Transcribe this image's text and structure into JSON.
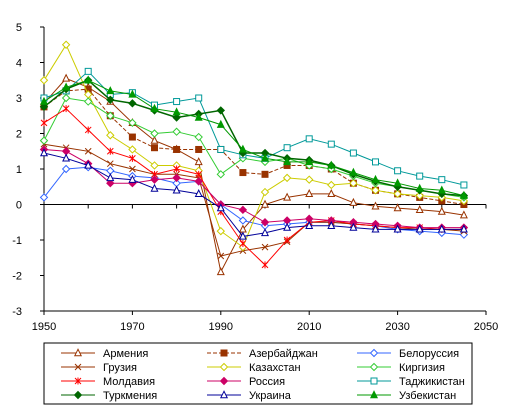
{
  "chart_data": {
    "type": "line",
    "title": "",
    "xlabel": "",
    "ylabel": "",
    "xlim": [
      1950,
      2050
    ],
    "ylim": [
      -3,
      5
    ],
    "x_ticks": [
      "1950",
      "1970",
      "1990",
      "2010",
      "2030",
      "2050"
    ],
    "y_ticks": [
      "-3",
      "-2",
      "-1",
      "0",
      "1",
      "2",
      "3",
      "4",
      "5"
    ],
    "grid": false,
    "legend_position": "bottom",
    "x": [
      1950,
      1955,
      1960,
      1965,
      1970,
      1975,
      1980,
      1985,
      1990,
      1995,
      2000,
      2005,
      2010,
      2015,
      2020,
      2025,
      2030,
      2035,
      2040,
      2045
    ],
    "series": [
      {
        "name": "Армения",
        "color": "#993300",
        "marker": "triangle-open",
        "dash": "solid",
        "values": [
          2.85,
          3.55,
          3.3,
          2.9,
          2.3,
          1.8,
          1.55,
          1.2,
          -1.9,
          -0.7,
          0.0,
          0.2,
          0.3,
          0.3,
          0.05,
          -0.05,
          -0.1,
          -0.15,
          -0.2,
          -0.3
        ]
      },
      {
        "name": "Азербайджан",
        "color": "#993300",
        "marker": "square-filled",
        "dash": "dashed",
        "values": [
          2.75,
          3.2,
          3.25,
          2.5,
          1.9,
          1.6,
          1.55,
          1.55,
          1.55,
          0.9,
          0.85,
          1.1,
          1.1,
          1.0,
          0.6,
          0.4,
          0.3,
          0.2,
          0.1,
          0.0
        ]
      },
      {
        "name": "Белоруссия",
        "color": "#3366ff",
        "marker": "diamond-open",
        "dash": "solid",
        "values": [
          0.2,
          1.0,
          1.05,
          0.95,
          0.8,
          0.75,
          0.6,
          0.65,
          0.0,
          -0.45,
          -0.6,
          -0.55,
          -0.5,
          -0.5,
          -0.55,
          -0.6,
          -0.7,
          -0.75,
          -0.8,
          -0.85
        ]
      },
      {
        "name": "Грузия",
        "color": "#993300",
        "marker": "x",
        "dash": "solid",
        "values": [
          1.7,
          1.6,
          1.5,
          1.15,
          1.0,
          0.85,
          0.85,
          0.75,
          -1.45,
          -1.3,
          -1.2,
          -1.05,
          -0.5,
          -0.5,
          -0.55,
          -0.6,
          -0.65,
          -0.7,
          -0.7,
          -0.75
        ]
      },
      {
        "name": "Казахстан",
        "color": "#cccc00",
        "marker": "diamond-open",
        "dash": "solid",
        "values": [
          3.5,
          4.5,
          3.1,
          1.95,
          1.55,
          1.1,
          1.1,
          0.95,
          -0.75,
          -1.2,
          0.35,
          0.75,
          0.7,
          0.55,
          0.6,
          0.4,
          0.3,
          0.25,
          0.2,
          0.1
        ]
      },
      {
        "name": "Киргизия",
        "color": "#33cc33",
        "marker": "diamond-open",
        "dash": "solid",
        "values": [
          1.8,
          3.0,
          2.9,
          2.5,
          2.3,
          2.0,
          2.05,
          1.9,
          0.85,
          1.3,
          1.2,
          1.3,
          1.1,
          1.0,
          0.8,
          0.6,
          0.5,
          0.4,
          0.3,
          0.2
        ]
      },
      {
        "name": "Молдавия",
        "color": "#ff0000",
        "marker": "asterisk",
        "dash": "solid",
        "values": [
          2.3,
          2.7,
          2.1,
          1.5,
          1.3,
          0.85,
          1.0,
          0.85,
          -0.2,
          -1.1,
          -1.7,
          -1.0,
          -0.5,
          -0.45,
          -0.55,
          -0.6,
          -0.65,
          -0.65,
          -0.7,
          -0.7
        ]
      },
      {
        "name": "Россия",
        "color": "#cc0066",
        "marker": "diamond-filled",
        "dash": "solid",
        "values": [
          1.55,
          1.5,
          1.15,
          0.6,
          0.6,
          0.7,
          0.75,
          0.65,
          0.0,
          -0.15,
          -0.5,
          -0.45,
          -0.4,
          -0.45,
          -0.5,
          -0.55,
          -0.6,
          -0.65,
          -0.65,
          -0.65
        ]
      },
      {
        "name": "Таджикистан",
        "color": "#009999",
        "marker": "square-open",
        "dash": "solid",
        "values": [
          3.0,
          3.2,
          3.75,
          3.1,
          3.15,
          2.8,
          2.9,
          3.0,
          1.55,
          1.4,
          1.3,
          1.6,
          1.85,
          1.7,
          1.45,
          1.2,
          0.95,
          0.8,
          0.7,
          0.55
        ]
      },
      {
        "name": "Туркмения",
        "color": "#006600",
        "marker": "diamond-filled",
        "dash": "solid",
        "values": [
          2.75,
          3.25,
          3.5,
          2.95,
          2.85,
          2.65,
          2.45,
          2.55,
          2.65,
          1.45,
          1.45,
          1.3,
          1.25,
          1.1,
          0.85,
          0.65,
          0.5,
          0.4,
          0.3,
          0.25
        ]
      },
      {
        "name": "Украина",
        "color": "#000099",
        "marker": "triangle-open",
        "dash": "solid",
        "values": [
          1.45,
          1.3,
          1.1,
          0.75,
          0.7,
          0.45,
          0.4,
          0.3,
          -0.1,
          -0.9,
          -0.8,
          -0.65,
          -0.6,
          -0.6,
          -0.65,
          -0.7,
          -0.7,
          -0.7,
          -0.7,
          -0.7
        ]
      },
      {
        "name": "Узбекистан",
        "color": "#009900",
        "marker": "triangle-filled",
        "dash": "solid",
        "values": [
          2.9,
          3.3,
          3.5,
          3.2,
          3.1,
          2.7,
          2.6,
          2.45,
          2.25,
          1.55,
          1.3,
          1.2,
          1.2,
          1.1,
          0.9,
          0.7,
          0.6,
          0.45,
          0.4,
          0.25
        ]
      }
    ]
  }
}
